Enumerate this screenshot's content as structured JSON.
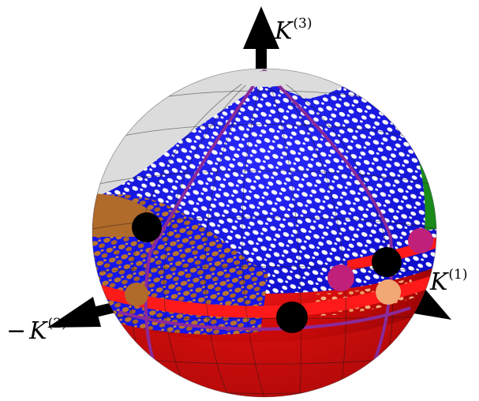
{
  "axes": {
    "k3": {
      "sign": "",
      "symbol": "K",
      "superscript": "(3)"
    },
    "k1": {
      "sign": "",
      "symbol": "K",
      "superscript": "(1)"
    },
    "k2": {
      "sign": "−",
      "symbol": "K",
      "superscript": "(2)"
    }
  },
  "colors": {
    "cap": "#d9d9d9",
    "blue": "#1515ee",
    "white": "#ffffff",
    "brown": "#b06a2a",
    "red": "#e81010",
    "red_dark": "#8a0000",
    "green": "#1a8a1a",
    "purple": "#8a2a9a",
    "black": "#000000",
    "magenta": "#c0207a",
    "peach": "#f2a874"
  },
  "markers": [
    {
      "name": "black-point-upper-left",
      "color": "black"
    },
    {
      "name": "black-point-right",
      "color": "black"
    },
    {
      "name": "black-point-lower-center",
      "color": "black"
    },
    {
      "name": "magenta-point-far-right",
      "color": "magenta"
    },
    {
      "name": "magenta-point-right",
      "color": "magenta"
    },
    {
      "name": "peach-point-right",
      "color": "peach"
    },
    {
      "name": "brown-point-left",
      "color": "brown"
    }
  ]
}
